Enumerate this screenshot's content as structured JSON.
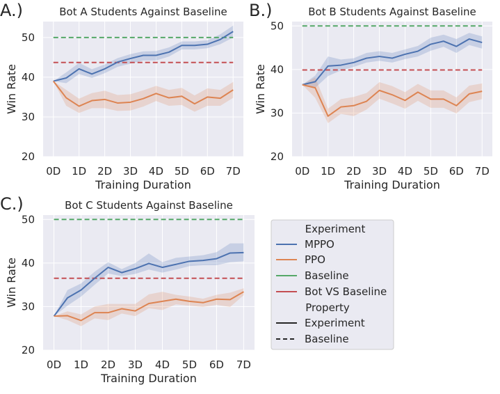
{
  "x_categories": [
    "0D",
    "1D",
    "2D",
    "3D",
    "4D",
    "5D",
    "6D",
    "7D"
  ],
  "chart_data": [
    {
      "type": "line",
      "panel_label": "A.)",
      "title": "Bot A Students Against Baseline",
      "xlabel": "Training Duration",
      "ylabel": "Win Rate",
      "x": [
        0,
        0.5,
        1,
        1.5,
        2,
        2.5,
        3,
        3.5,
        4,
        4.5,
        5,
        5.5,
        6,
        6.5,
        7
      ],
      "xlim": [
        -0.4,
        7.4
      ],
      "ylim": [
        20,
        54
      ],
      "yticks": [
        20,
        30,
        40,
        50
      ],
      "series": [
        {
          "name": "MPPO",
          "values": [
            39,
            39.8,
            42.1,
            40.8,
            42.1,
            43.8,
            44.7,
            45.5,
            45.5,
            46.3,
            48,
            48,
            48.3,
            49.5,
            51.5
          ],
          "lower": [
            39,
            38.5,
            40.8,
            39.8,
            41,
            42.6,
            43.4,
            44.2,
            44.2,
            45.2,
            47,
            47,
            47.3,
            48.3,
            50
          ],
          "upper": [
            39,
            41.2,
            43.6,
            42,
            43.2,
            44.8,
            45.8,
            46.5,
            46.6,
            47.5,
            49,
            49,
            49.3,
            50.8,
            53
          ]
        },
        {
          "name": "PPO",
          "values": [
            39,
            34.8,
            32.7,
            34.1,
            34.4,
            33.5,
            33.7,
            34.6,
            35.9,
            34.8,
            35.2,
            33.3,
            35,
            34.7,
            36.8
          ],
          "lower": [
            39,
            32.8,
            31,
            32.2,
            32.2,
            31.5,
            31.6,
            32.6,
            34,
            32.8,
            33,
            31.3,
            32.8,
            32.8,
            34.8
          ],
          "upper": [
            39,
            36.8,
            34.6,
            36,
            36.6,
            35.5,
            35.7,
            36.7,
            37.8,
            36.8,
            37.3,
            35.4,
            37.2,
            36.8,
            38.8
          ]
        }
      ],
      "baselines": [
        {
          "name": "Baseline",
          "value": 50
        },
        {
          "name": "Bot VS Baseline",
          "value": 43.7
        }
      ]
    },
    {
      "type": "line",
      "panel_label": "B.)",
      "title": "Bot B Students Against Baseline",
      "xlabel": "Training Duration",
      "ylabel": "Win Rate",
      "x": [
        0,
        0.5,
        1,
        1.5,
        2,
        2.5,
        3,
        3.5,
        4,
        4.5,
        5,
        5.5,
        6,
        6.5,
        7
      ],
      "xlim": [
        -0.4,
        7.4
      ],
      "ylim": [
        20,
        51
      ],
      "yticks": [
        20,
        30,
        40,
        50
      ],
      "series": [
        {
          "name": "MPPO",
          "values": [
            36.5,
            37.2,
            40.8,
            41,
            41.6,
            42.6,
            43,
            42.6,
            43.5,
            44.2,
            45.8,
            46.5,
            45.3,
            47,
            46.2
          ],
          "lower": [
            36.5,
            35.8,
            38.5,
            39.8,
            40.6,
            41.6,
            42,
            41.6,
            42.4,
            43,
            44.3,
            45.2,
            43.8,
            45.6,
            44.8
          ],
          "upper": [
            36.5,
            38.6,
            43,
            42.3,
            42.6,
            43.8,
            44.2,
            43.8,
            44.6,
            45.4,
            47.3,
            48,
            47,
            48.4,
            47.6
          ]
        },
        {
          "name": "PPO",
          "values": [
            36.5,
            35.8,
            29.3,
            31.4,
            31.7,
            32.7,
            35.2,
            34.2,
            32.9,
            34.8,
            33.2,
            33.2,
            31.7,
            34.4,
            35
          ],
          "lower": [
            36.5,
            33.5,
            27.7,
            29.8,
            29.3,
            30.8,
            33.3,
            32.2,
            31,
            32.8,
            31.2,
            31.2,
            29.9,
            32.5,
            33.2
          ],
          "upper": [
            36.5,
            38.2,
            31,
            33.2,
            33.7,
            34.6,
            37.1,
            36.2,
            34.8,
            36.7,
            35.2,
            35.2,
            33.6,
            36.3,
            36.8
          ]
        }
      ],
      "baselines": [
        {
          "name": "Baseline",
          "value": 50
        },
        {
          "name": "Bot VS Baseline",
          "value": 39.9
        }
      ]
    },
    {
      "type": "line",
      "panel_label": "C.)",
      "title": "Bot C Students Against Baseline",
      "xlabel": "Training Duration",
      "ylabel": "Win Rate",
      "x": [
        0,
        0.5,
        1,
        1.5,
        2,
        2.5,
        3,
        3.5,
        4,
        4.5,
        5,
        5.5,
        6,
        6.5,
        7
      ],
      "xlim": [
        -0.4,
        7.4
      ],
      "ylim": [
        20,
        51
      ],
      "yticks": [
        20,
        30,
        40,
        50
      ],
      "series": [
        {
          "name": "MPPO",
          "values": [
            27.8,
            32,
            33.8,
            36.5,
            39,
            37.8,
            38.7,
            39.9,
            39,
            39.7,
            40.4,
            40.6,
            41,
            42.3,
            42.4
          ],
          "lower": [
            27.8,
            30.2,
            32.3,
            35,
            37.6,
            37,
            37.5,
            38.5,
            37.8,
            38.5,
            39.3,
            39.5,
            39.5,
            40.2,
            40.4
          ],
          "upper": [
            27.8,
            33.8,
            35.3,
            38,
            40.2,
            38.6,
            40,
            42.2,
            40.2,
            41.2,
            41.5,
            41.8,
            42.5,
            44.5,
            44.5
          ]
        },
        {
          "name": "PPO",
          "values": [
            27.8,
            27.9,
            26.8,
            28.6,
            28.6,
            29.5,
            29,
            30.7,
            31.2,
            31.7,
            31.2,
            30.9,
            31.7,
            31.6,
            33.4
          ],
          "lower": [
            27.8,
            26.9,
            25.5,
            27.3,
            26.9,
            28.4,
            27.8,
            29.6,
            29.2,
            30.5,
            30.2,
            29.9,
            30.4,
            29.9,
            32.6
          ],
          "upper": [
            27.8,
            28.9,
            28.2,
            30,
            30.6,
            30.6,
            30.6,
            32.8,
            33.4,
            32.7,
            32.3,
            31.8,
            32.7,
            33.2,
            34.2
          ]
        }
      ],
      "baselines": [
        {
          "name": "Baseline",
          "value": 50
        },
        {
          "name": "Bot VS Baseline",
          "value": 36.5
        }
      ]
    }
  ],
  "legend": {
    "title_experiment": "Experiment",
    "entries_experiment": [
      "MPPO",
      "PPO",
      "Baseline",
      "Bot VS Baseline"
    ],
    "title_property": "Property",
    "entries_property": [
      "Experiment",
      "Baseline"
    ]
  },
  "colors": {
    "MPPO": "#4c72b0",
    "PPO": "#dd8452",
    "Baseline": "#55a868",
    "Bot VS Baseline": "#c44e52",
    "axes_bg": "#eaeaf2",
    "grid": "#ffffff",
    "text": "#262626"
  }
}
